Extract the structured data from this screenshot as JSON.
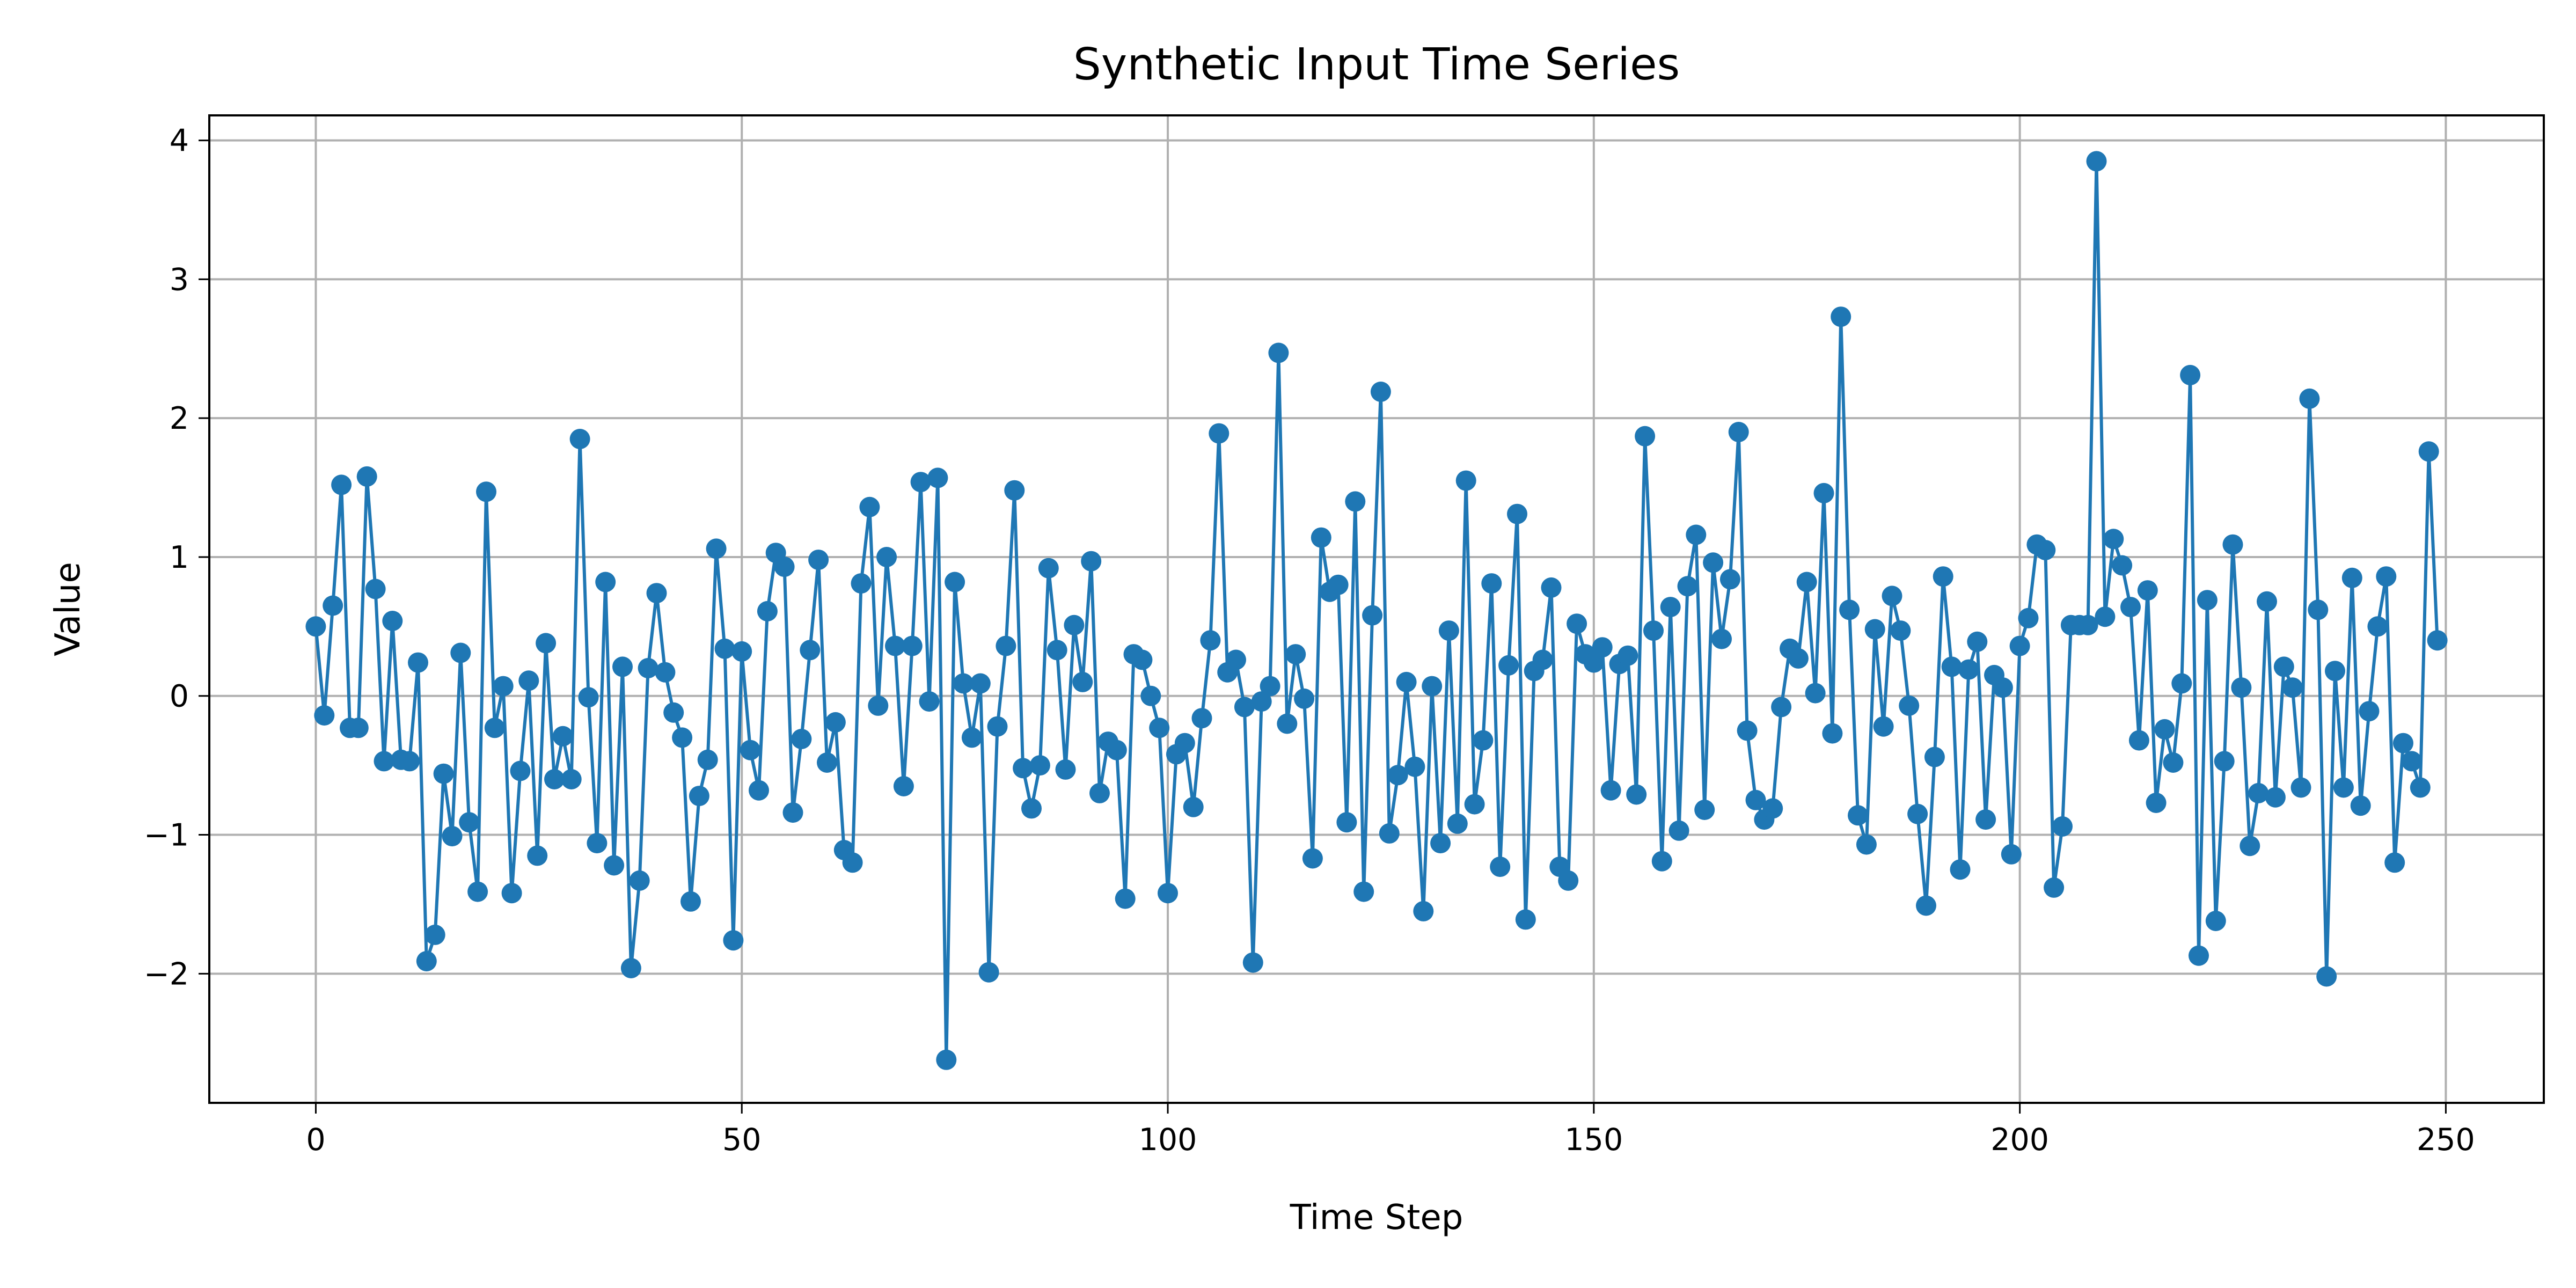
{
  "chart_data": {
    "type": "line",
    "title": "Synthetic Input Time Series",
    "xlabel": "Time Step",
    "ylabel": "Value",
    "xlim": [
      -12.5,
      261.5
    ],
    "ylim": [
      -2.93,
      4.18
    ],
    "xticks": [
      0,
      50,
      100,
      150,
      200,
      250
    ],
    "yticks": [
      -2,
      -1,
      0,
      1,
      2,
      3,
      4
    ],
    "grid": true,
    "legend": "none",
    "series": [
      {
        "color": "#1f77b4",
        "marker": "circle",
        "x_start": 0,
        "x_step": 1,
        "values": [
          0.5,
          -0.14,
          0.65,
          1.52,
          -0.23,
          -0.23,
          1.58,
          0.77,
          -0.47,
          0.54,
          -0.46,
          -0.47,
          0.24,
          -1.91,
          -1.72,
          -0.56,
          -1.01,
          0.31,
          -0.91,
          -1.41,
          1.47,
          -0.23,
          0.07,
          -1.42,
          -0.54,
          0.11,
          -1.15,
          0.38,
          -0.6,
          -0.29,
          -0.6,
          1.85,
          -0.01,
          -1.06,
          0.82,
          -1.22,
          0.21,
          -1.96,
          -1.33,
          0.2,
          0.74,
          0.17,
          -0.12,
          -0.3,
          -1.48,
          -0.72,
          -0.46,
          1.06,
          0.34,
          -1.76,
          0.32,
          -0.39,
          -0.68,
          0.61,
          1.03,
          0.93,
          -0.84,
          -0.31,
          0.33,
          0.98,
          -0.48,
          -0.19,
          -1.11,
          -1.2,
          0.81,
          1.36,
          -0.07,
          1.0,
          0.36,
          -0.65,
          0.36,
          1.54,
          -0.04,
          1.57,
          -2.62,
          0.82,
          0.09,
          -0.3,
          0.09,
          -1.99,
          -0.22,
          0.36,
          1.48,
          -0.52,
          -0.81,
          -0.5,
          0.92,
          0.33,
          -0.53,
          0.51,
          0.1,
          0.97,
          -0.7,
          -0.33,
          -0.39,
          -1.46,
          0.3,
          0.26,
          0.0,
          -0.23,
          -1.42,
          -0.42,
          -0.34,
          -0.8,
          -0.16,
          0.4,
          1.89,
          0.17,
          0.26,
          -0.08,
          -1.92,
          -0.04,
          0.07,
          2.47,
          -0.2,
          0.3,
          -0.02,
          -1.17,
          1.14,
          0.75,
          0.8,
          -0.91,
          1.4,
          -1.41,
          0.58,
          2.19,
          -0.99,
          -0.57,
          0.1,
          -0.51,
          -1.55,
          0.07,
          -1.06,
          0.47,
          -0.92,
          1.55,
          -0.78,
          -0.32,
          0.81,
          -1.23,
          0.22,
          1.31,
          -1.61,
          0.18,
          0.26,
          0.78,
          -1.23,
          -1.33,
          0.52,
          0.3,
          0.24,
          0.35,
          -0.68,
          0.23,
          0.29,
          -0.71,
          1.87,
          0.47,
          -1.19,
          0.64,
          -0.97,
          0.79,
          1.16,
          -0.82,
          0.96,
          0.41,
          0.84,
          1.9,
          -0.25,
          -0.75,
          -0.89,
          -0.81,
          -0.08,
          0.34,
          0.27,
          0.82,
          0.02,
          1.46,
          -0.27,
          2.73,
          0.62,
          -0.86,
          -1.07,
          0.48,
          -0.22,
          0.72,
          0.47,
          -0.07,
          -0.85,
          -1.51,
          -0.44,
          0.86,
          0.21,
          -1.25,
          0.19,
          0.39,
          -0.89,
          0.15,
          0.06,
          -1.14,
          0.36,
          0.56,
          1.09,
          1.05,
          -1.38,
          -0.94,
          0.51,
          0.51,
          0.51,
          3.85,
          0.57,
          1.13,
          0.94,
          0.64,
          -0.32,
          0.76,
          -0.77,
          -0.24,
          -0.48,
          0.09,
          2.31,
          -1.87,
          0.69,
          -1.62,
          -0.47,
          1.09,
          0.06,
          -1.08,
          -0.7,
          0.68,
          -0.73,
          0.21,
          0.06,
          -0.66,
          2.14,
          0.62,
          -2.02,
          0.18,
          -0.66,
          0.85,
          -0.79,
          -0.11,
          0.5,
          0.86,
          -1.2,
          -0.34,
          -0.47,
          -0.66,
          1.76,
          0.4
        ]
      }
    ]
  }
}
